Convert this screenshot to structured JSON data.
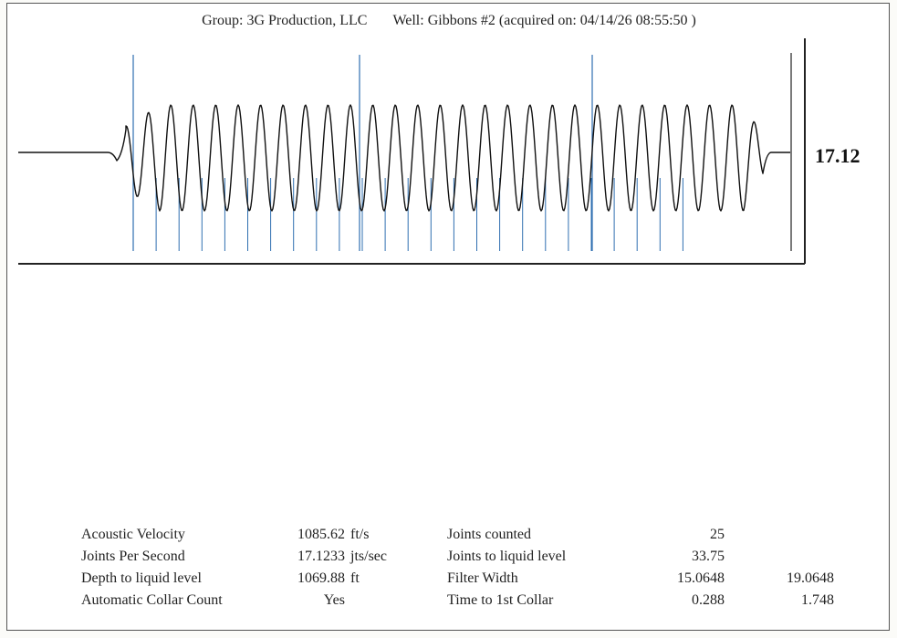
{
  "header": {
    "group": "Group: 3G Production, LLC",
    "well": "Well: Gibbons #2 (acquired on: 04/14/26 08:55:50 )"
  },
  "readout": "17.12",
  "colors": {
    "trace": "#111111",
    "marker": "#2f6fb0",
    "frame": "#222222"
  },
  "markers": {
    "major_count": 3,
    "minor_count": 25
  },
  "params": {
    "left": [
      {
        "label": "Acoustic Velocity",
        "value": "1085.62",
        "unit": "ft/s"
      },
      {
        "label": "Joints Per Second",
        "value": "17.1233",
        "unit": "jts/sec"
      },
      {
        "label": "Depth to liquid level",
        "value": "1069.88",
        "unit": "ft"
      },
      {
        "label": "Automatic Collar Count",
        "value": "Yes",
        "unit": ""
      }
    ],
    "right": [
      {
        "label": "Joints counted",
        "value": "25",
        "extra": ""
      },
      {
        "label": "Joints to liquid level",
        "value": "33.75",
        "extra": ""
      },
      {
        "label": "Filter Width",
        "value": "15.0648",
        "extra": "19.0648"
      },
      {
        "label": "Time to 1st Collar",
        "value": "0.288",
        "extra": "1.748"
      }
    ]
  }
}
